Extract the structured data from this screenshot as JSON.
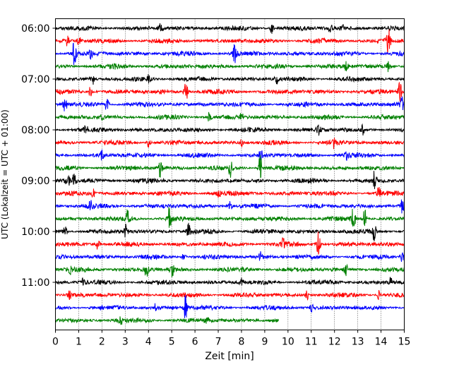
{
  "chart_data": {
    "type": "line",
    "title": "",
    "xlabel": "Zeit  [min]",
    "ylabel": "UTC (Lokalzeit = UTC + 01:00)",
    "xlim": [
      0,
      15
    ],
    "x_ticks": [
      "0",
      "1",
      "2",
      "3",
      "4",
      "5",
      "6",
      "7",
      "8",
      "9",
      "10",
      "11",
      "12",
      "13",
      "14",
      "15"
    ],
    "y_ticks": [
      {
        "label": "06:00",
        "value": 0
      },
      {
        "label": "07:00",
        "value": 4
      },
      {
        "label": "08:00",
        "value": 8
      },
      {
        "label": "09:00",
        "value": 12
      },
      {
        "label": "10:00",
        "value": 16
      },
      {
        "label": "11:00",
        "value": 20
      }
    ],
    "grid": "vertical dotted lines at each minute",
    "trace_colors": [
      "#000000",
      "#ff0000",
      "#0000ff",
      "#008000"
    ],
    "series": [
      {
        "start": "06:00",
        "end_min": 15,
        "color": "#000000",
        "events": [
          [
            4.5,
            6
          ],
          [
            12.3,
            8
          ],
          [
            9.3,
            8
          ],
          [
            11.8,
            6
          ]
        ]
      },
      {
        "start": "06:15",
        "end_min": 15,
        "color": "#ff0000",
        "events": [
          [
            14.3,
            22
          ],
          [
            0.5,
            6
          ],
          [
            1.0,
            5
          ]
        ]
      },
      {
        "start": "06:30",
        "end_min": 15,
        "color": "#0000ff",
        "events": [
          [
            0.8,
            16
          ],
          [
            7.7,
            14
          ],
          [
            1.5,
            6
          ]
        ]
      },
      {
        "start": "06:45",
        "end_min": 15,
        "color": "#008000",
        "events": [
          [
            14.3,
            8
          ],
          [
            12.5,
            5
          ],
          [
            2.5,
            5
          ]
        ]
      },
      {
        "start": "07:00",
        "end_min": 15,
        "color": "#000000",
        "events": [
          [
            1.6,
            7
          ],
          [
            4.0,
            5
          ],
          [
            9.5,
            6
          ]
        ]
      },
      {
        "start": "07:15",
        "end_min": 15,
        "color": "#ff0000",
        "events": [
          [
            5.6,
            16
          ],
          [
            14.8,
            14
          ],
          [
            1.5,
            6
          ]
        ]
      },
      {
        "start": "07:30",
        "end_min": 15,
        "color": "#0000ff",
        "events": [
          [
            0.4,
            9
          ],
          [
            2.2,
            9
          ],
          [
            14.9,
            10
          ]
        ]
      },
      {
        "start": "07:45",
        "end_min": 15,
        "color": "#008000",
        "events": [
          [
            6.6,
            6
          ],
          [
            8.0,
            5
          ],
          [
            2.0,
            4
          ]
        ]
      },
      {
        "start": "08:00",
        "end_min": 15,
        "color": "#000000",
        "events": [
          [
            1.3,
            6
          ],
          [
            11.3,
            7
          ],
          [
            13.2,
            6
          ]
        ]
      },
      {
        "start": "08:15",
        "end_min": 15,
        "color": "#ff0000",
        "events": [
          [
            4.0,
            6
          ],
          [
            8.0,
            6
          ],
          [
            12.0,
            7
          ]
        ]
      },
      {
        "start": "08:30",
        "end_min": 15,
        "color": "#0000ff",
        "events": [
          [
            2.0,
            7
          ],
          [
            8.8,
            8
          ],
          [
            12.5,
            6
          ]
        ]
      },
      {
        "start": "08:45",
        "end_min": 15,
        "color": "#008000",
        "events": [
          [
            4.5,
            12
          ],
          [
            7.5,
            12
          ],
          [
            8.8,
            18
          ]
        ]
      },
      {
        "start": "09:00",
        "end_min": 15,
        "color": "#000000",
        "events": [
          [
            0.5,
            14
          ],
          [
            0.8,
            10
          ],
          [
            13.7,
            12
          ]
        ]
      },
      {
        "start": "09:15",
        "end_min": 15,
        "color": "#ff0000",
        "events": [
          [
            1.6,
            6
          ],
          [
            7.0,
            6
          ],
          [
            13.9,
            7
          ]
        ]
      },
      {
        "start": "09:30",
        "end_min": 15,
        "color": "#0000ff",
        "events": [
          [
            1.5,
            12
          ],
          [
            7.5,
            6
          ],
          [
            14.9,
            8
          ]
        ]
      },
      {
        "start": "09:45",
        "end_min": 15,
        "color": "#008000",
        "events": [
          [
            4.9,
            16
          ],
          [
            3.1,
            10
          ],
          [
            12.8,
            14
          ],
          [
            13.3,
            12
          ]
        ]
      },
      {
        "start": "10:00",
        "end_min": 15,
        "color": "#000000",
        "events": [
          [
            3.0,
            10
          ],
          [
            5.7,
            12
          ],
          [
            13.7,
            12
          ],
          [
            0.4,
            8
          ]
        ]
      },
      {
        "start": "10:15",
        "end_min": 15,
        "color": "#ff0000",
        "events": [
          [
            11.3,
            18
          ],
          [
            1.8,
            10
          ],
          [
            9.8,
            8
          ]
        ]
      },
      {
        "start": "10:30",
        "end_min": 15,
        "color": "#0000ff",
        "events": [
          [
            5.5,
            6
          ],
          [
            8.8,
            6
          ],
          [
            14.9,
            6
          ]
        ]
      },
      {
        "start": "10:45",
        "end_min": 15,
        "color": "#008000",
        "events": [
          [
            3.9,
            12
          ],
          [
            5.0,
            10
          ],
          [
            12.5,
            10
          ],
          [
            0.6,
            7
          ]
        ]
      },
      {
        "start": "11:00",
        "end_min": 15,
        "color": "#000000",
        "events": [
          [
            1.2,
            5
          ],
          [
            8.0,
            5
          ],
          [
            14.4,
            6
          ]
        ]
      },
      {
        "start": "11:15",
        "end_min": 15,
        "color": "#ff0000",
        "events": [
          [
            0.6,
            5
          ],
          [
            10.8,
            6
          ],
          [
            13.9,
            6
          ]
        ]
      },
      {
        "start": "11:30",
        "end_min": 15,
        "color": "#0000ff",
        "events": [
          [
            5.6,
            16
          ],
          [
            11.0,
            5
          ],
          [
            4.3,
            5
          ]
        ]
      },
      {
        "start": "11:45",
        "end_min": 9.6,
        "color": "#008000",
        "events": [
          [
            2.8,
            5
          ],
          [
            6.5,
            5
          ]
        ]
      }
    ]
  }
}
